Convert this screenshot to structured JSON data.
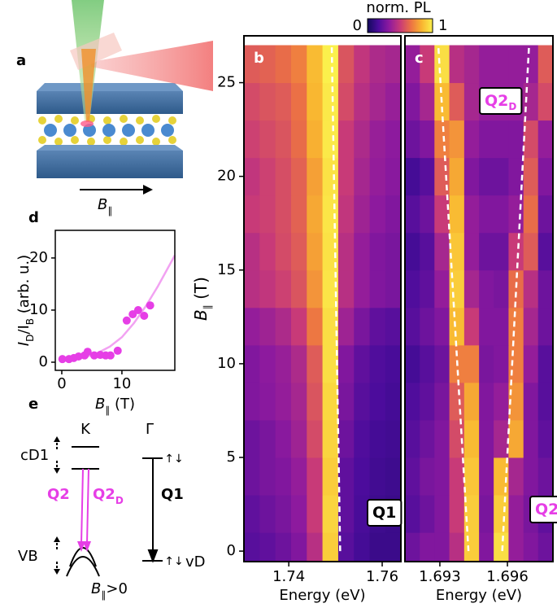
{
  "chart_data": [
    {
      "type": "heatmap",
      "letter": "b",
      "xlabel": "Energy (eV)",
      "ylabel": [
        "B",
        "∥",
        " (T)"
      ],
      "x": [
        1.73208,
        1.73545,
        1.73881,
        1.74218,
        1.74554,
        1.7489,
        1.75227,
        1.75563,
        1.759,
        1.76236
      ],
      "y": [
        0,
        2,
        4,
        6,
        8,
        10,
        12,
        14,
        16,
        18,
        20,
        22,
        24,
        26
      ],
      "z": [
        [
          0.2,
          0.22,
          0.25,
          0.3,
          0.45,
          0.9,
          0.2,
          0.15,
          0.12,
          0.12
        ],
        [
          0.22,
          0.25,
          0.28,
          0.33,
          0.5,
          0.92,
          0.22,
          0.16,
          0.13,
          0.12
        ],
        [
          0.25,
          0.28,
          0.3,
          0.35,
          0.5,
          0.9,
          0.22,
          0.17,
          0.14,
          0.13
        ],
        [
          0.25,
          0.28,
          0.32,
          0.38,
          0.55,
          0.92,
          0.25,
          0.18,
          0.15,
          0.14
        ],
        [
          0.3,
          0.32,
          0.35,
          0.4,
          0.58,
          0.93,
          0.28,
          0.2,
          0.17,
          0.15
        ],
        [
          0.3,
          0.33,
          0.36,
          0.42,
          0.6,
          0.95,
          0.3,
          0.22,
          0.18,
          0.16
        ],
        [
          0.35,
          0.38,
          0.42,
          0.5,
          0.68,
          0.95,
          0.38,
          0.28,
          0.22,
          0.2
        ],
        [
          0.45,
          0.48,
          0.52,
          0.58,
          0.75,
          0.97,
          0.45,
          0.35,
          0.3,
          0.28
        ],
        [
          0.45,
          0.5,
          0.55,
          0.6,
          0.78,
          0.96,
          0.45,
          0.35,
          0.3,
          0.28
        ],
        [
          0.5,
          0.52,
          0.56,
          0.62,
          0.8,
          0.97,
          0.48,
          0.38,
          0.33,
          0.3
        ],
        [
          0.48,
          0.52,
          0.56,
          0.62,
          0.78,
          0.96,
          0.5,
          0.4,
          0.35,
          0.32
        ],
        [
          0.52,
          0.55,
          0.58,
          0.65,
          0.82,
          0.98,
          0.5,
          0.42,
          0.36,
          0.33
        ],
        [
          0.55,
          0.58,
          0.6,
          0.66,
          0.84,
          0.98,
          0.55,
          0.45,
          0.4,
          0.36
        ],
        [
          0.6,
          0.62,
          0.65,
          0.7,
          0.85,
          1,
          0.58,
          0.48,
          0.42,
          0.4
        ]
      ],
      "xlim": [
        1.7304,
        1.764
      ],
      "ylim": [
        -0.56,
        27.5
      ],
      "xticks": [
        1.74,
        1.76
      ],
      "yticks": [
        0,
        5,
        10,
        15,
        20,
        25
      ],
      "colormap": [
        "#120a5c",
        "#4b0c9c",
        "#8e1a9e",
        "#c83a78",
        "#ec7244",
        "#f9b530",
        "#fbf04c"
      ],
      "lines": [
        {
          "x": [
            1.751,
            1.7492
          ],
          "y": [
            0,
            27
          ],
          "color": "#ffffff"
        }
      ],
      "labels": [
        {
          "text": [
            "Q1"
          ],
          "color": "#000000"
        }
      ]
    },
    {
      "type": "heatmap",
      "letter": "c",
      "xlabel": "Energy (eV)",
      "x": [
        1.69178,
        1.69244,
        1.69309,
        1.69375,
        1.69441,
        1.69507,
        1.69572,
        1.69638,
        1.69704,
        1.69769
      ],
      "y": [
        0,
        2,
        4,
        6,
        8,
        10,
        12,
        14,
        16,
        18,
        20,
        22,
        24,
        26
      ],
      "z": [
        [
          0.25,
          0.3,
          0.3,
          0.45,
          0.9,
          0.3,
          0.95,
          0.35,
          0.3,
          0.25
        ],
        [
          0.2,
          0.25,
          0.3,
          0.5,
          0.9,
          0.28,
          0.9,
          0.35,
          0.28,
          0.22
        ],
        [
          0.22,
          0.28,
          0.3,
          0.5,
          0.88,
          0.3,
          0.85,
          0.4,
          0.3,
          0.25
        ],
        [
          0.2,
          0.25,
          0.3,
          0.55,
          0.85,
          0.3,
          0.4,
          0.8,
          0.3,
          0.22
        ],
        [
          0.18,
          0.22,
          0.28,
          0.6,
          0.8,
          0.3,
          0.35,
          0.75,
          0.3,
          0.2
        ],
        [
          0.15,
          0.2,
          0.25,
          0.7,
          0.7,
          0.28,
          0.3,
          0.7,
          0.35,
          0.2
        ],
        [
          0.2,
          0.25,
          0.3,
          0.85,
          0.5,
          0.3,
          0.3,
          0.7,
          0.4,
          0.25
        ],
        [
          0.18,
          0.22,
          0.35,
          0.9,
          0.4,
          0.3,
          0.28,
          0.65,
          0.45,
          0.25
        ],
        [
          0.15,
          0.2,
          0.4,
          0.88,
          0.35,
          0.25,
          0.25,
          0.5,
          0.6,
          0.2
        ],
        [
          0.2,
          0.25,
          0.5,
          0.85,
          0.35,
          0.3,
          0.3,
          0.35,
          0.65,
          0.25
        ],
        [
          0.15,
          0.2,
          0.6,
          0.8,
          0.3,
          0.25,
          0.25,
          0.3,
          0.6,
          0.3
        ],
        [
          0.25,
          0.3,
          0.7,
          0.75,
          0.35,
          0.3,
          0.3,
          0.3,
          0.55,
          0.35
        ],
        [
          0.3,
          0.4,
          0.85,
          0.6,
          0.4,
          0.35,
          0.35,
          0.35,
          0.4,
          0.55
        ],
        [
          0.35,
          0.5,
          0.95,
          0.45,
          0.4,
          0.35,
          0.35,
          0.35,
          0.35,
          0.6
        ]
      ],
      "xlim": [
        1.69145,
        1.69802
      ],
      "ylim": [
        -0.56,
        27.5
      ],
      "xticks": [
        1.693,
        1.696
      ],
      "colormap": [
        "#120a5c",
        "#4b0c9c",
        "#8e1a9e",
        "#c83a78",
        "#ec7244",
        "#f9b530",
        "#fbf04c"
      ],
      "lines": [
        {
          "x": [
            1.69427,
            1.69293
          ],
          "y": [
            0,
            27
          ],
          "color": "#ffffff"
        },
        {
          "x": [
            1.69577,
            1.69696
          ],
          "y": [
            0,
            27
          ],
          "color": "#ffffff"
        }
      ],
      "labels": [
        {
          "text": [
            "Q2",
            "D"
          ],
          "color": "#e63ee6"
        },
        {
          "text": [
            "Q2"
          ],
          "color": "#e63ee6"
        }
      ]
    },
    {
      "type": "scatter",
      "letter": "d",
      "xlabel": [
        "B",
        "∥",
        " (T)"
      ],
      "ylabel": [
        "I",
        "D",
        "/I",
        "B",
        " (arb. u.)"
      ],
      "x": [
        0.1,
        1.2,
        2.0,
        2.8,
        3.8,
        4.3,
        5.4,
        6.4,
        7.3,
        8.1,
        9.3,
        10.8,
        11.8,
        12.7,
        13.7,
        14.7
      ],
      "y": [
        0.6,
        0.6,
        0.8,
        1.1,
        1.3,
        2.0,
        1.3,
        1.4,
        1.3,
        1.3,
        2.2,
        8.0,
        9.2,
        10.0,
        8.9,
        10.9
      ],
      "color": "#e63ee6",
      "fit": {
        "x": [
          0,
          2,
          4,
          6,
          8,
          10,
          12,
          14,
          16,
          18.8
        ],
        "y": [
          0.3,
          0.5,
          1,
          1.8,
          3,
          4.8,
          7.5,
          10.8,
          14.6,
          20.5
        ],
        "color": "#f2a2f2"
      },
      "xlim": [
        -1.08,
        18.8
      ],
      "ylim": [
        -1.56,
        25.3
      ],
      "xticks": [
        0,
        10
      ],
      "yticks": [
        0,
        10,
        20
      ]
    }
  ],
  "colorbar": {
    "label": "norm. PL",
    "ticks": [
      0,
      1
    ]
  },
  "panel_a": {
    "letter": "a",
    "field_label": [
      "B",
      "∥"
    ]
  },
  "panel_e": {
    "letter": "e",
    "K": "K",
    "Gamma": "Γ",
    "cD1": "cD1",
    "VB": "VB",
    "vD": "vD",
    "Q2": [
      "Q2"
    ],
    "Q2D": [
      "Q2",
      "D"
    ],
    "Q1": [
      "Q1"
    ],
    "spin_top": "↑↓",
    "spin_bottom": "↑↓",
    "field": [
      "B",
      "∥",
      ">0"
    ]
  }
}
